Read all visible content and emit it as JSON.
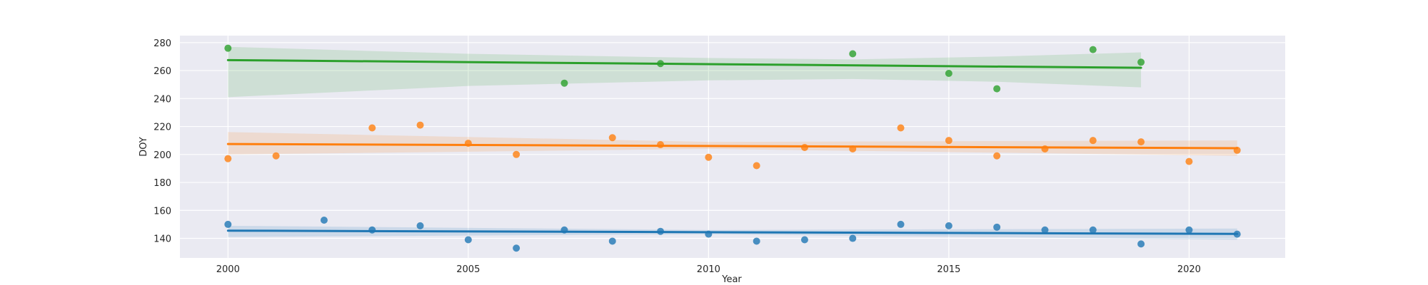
{
  "chart_data": {
    "type": "scatter",
    "title": "",
    "xlabel": "Year",
    "ylabel": "DOY",
    "xlim": [
      1999,
      2022
    ],
    "ylim": [
      126,
      285
    ],
    "xticks": [
      2000,
      2005,
      2010,
      2015,
      2020
    ],
    "yticks": [
      140,
      160,
      180,
      200,
      220,
      240,
      260,
      280
    ],
    "grid": true,
    "legend": "none",
    "series": [
      {
        "name": "series-blue",
        "color": "#1f77b4",
        "points": [
          [
            2000,
            150
          ],
          [
            2002,
            153
          ],
          [
            2003,
            146
          ],
          [
            2004,
            149
          ],
          [
            2005,
            139
          ],
          [
            2006,
            133
          ],
          [
            2007,
            146
          ],
          [
            2008,
            138
          ],
          [
            2009,
            145
          ],
          [
            2010,
            143
          ],
          [
            2011,
            138
          ],
          [
            2012,
            139
          ],
          [
            2013,
            140
          ],
          [
            2014,
            150
          ],
          [
            2015,
            149
          ],
          [
            2016,
            148
          ],
          [
            2017,
            146
          ],
          [
            2018,
            146
          ],
          [
            2019,
            136
          ],
          [
            2020,
            146
          ],
          [
            2021,
            143
          ]
        ],
        "trend": {
          "x": [
            2000,
            2021
          ],
          "y": [
            145.5,
            143.2
          ]
        },
        "ci_band": {
          "x": [
            2000,
            2010,
            2021
          ],
          "lower": [
            141,
            143,
            139
          ],
          "upper": [
            149,
            146,
            147
          ]
        }
      },
      {
        "name": "series-orange",
        "color": "#ff7f0e",
        "points": [
          [
            2000,
            197
          ],
          [
            2001,
            199
          ],
          [
            2003,
            219
          ],
          [
            2004,
            221
          ],
          [
            2005,
            208
          ],
          [
            2006,
            200
          ],
          [
            2008,
            212
          ],
          [
            2009,
            207
          ],
          [
            2010,
            198
          ],
          [
            2011,
            192
          ],
          [
            2012,
            205
          ],
          [
            2013,
            204
          ],
          [
            2014,
            219
          ],
          [
            2015,
            210
          ],
          [
            2016,
            199
          ],
          [
            2017,
            204
          ],
          [
            2018,
            210
          ],
          [
            2019,
            209
          ],
          [
            2020,
            195
          ],
          [
            2021,
            203
          ]
        ],
        "trend": {
          "x": [
            2000,
            2021
          ],
          "y": [
            207.5,
            204.5
          ]
        },
        "ci_band": {
          "x": [
            2000,
            2010,
            2021
          ],
          "lower": [
            200,
            204,
            199
          ],
          "upper": [
            216,
            209,
            210
          ]
        }
      },
      {
        "name": "series-green",
        "color": "#2ca02c",
        "points": [
          [
            2000,
            276
          ],
          [
            2007,
            251
          ],
          [
            2009,
            265
          ],
          [
            2013,
            272
          ],
          [
            2015,
            258
          ],
          [
            2016,
            247
          ],
          [
            2018,
            275
          ],
          [
            2019,
            266
          ]
        ],
        "trend": {
          "x": [
            2000,
            2019
          ],
          "y": [
            267.5,
            262.0
          ]
        },
        "ci_band": {
          "x": [
            2000,
            2005,
            2010,
            2013,
            2016,
            2019
          ],
          "lower": [
            241,
            249,
            253,
            254,
            252,
            248
          ],
          "upper": [
            277,
            272,
            269,
            268,
            270,
            273
          ]
        }
      }
    ]
  }
}
